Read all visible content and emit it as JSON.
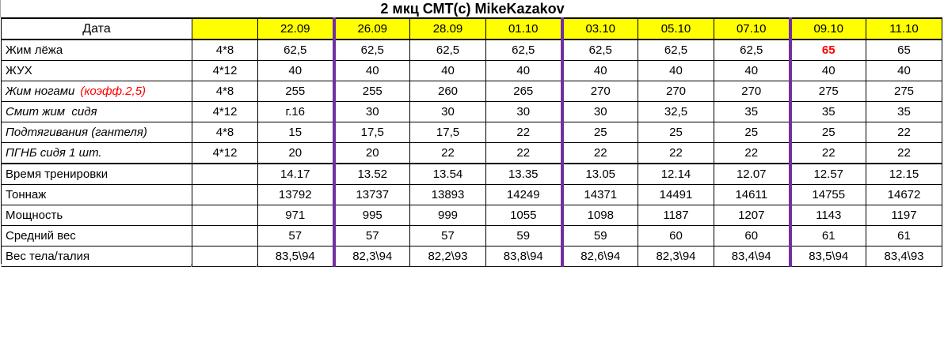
{
  "title": "2 мкц СМТ(с) MikeKazakov",
  "colors": {
    "header_bg": "#ffff00",
    "group_border": "#7030A0",
    "highlight_text": "#ff0000",
    "grid_border": "#000000"
  },
  "table": {
    "header": {
      "label": "Дата",
      "sets_label": "",
      "dates": [
        "22.09",
        "26.09",
        "28.09",
        "01.10",
        "03.10",
        "05.10",
        "07.10",
        "09.10",
        "11.10"
      ]
    },
    "group_break_after": [
      0,
      3,
      6
    ],
    "exercises": [
      {
        "name": "Жим лёжа",
        "scheme": "4*8",
        "italic": false,
        "highlight_index": 7,
        "values": [
          "62,5",
          "62,5",
          "62,5",
          "62,5",
          "62,5",
          "62,5",
          "62,5",
          "65",
          "65"
        ]
      },
      {
        "name": "ЖУХ",
        "scheme": "4*12",
        "italic": false,
        "values": [
          "40",
          "40",
          "40",
          "40",
          "40",
          "40",
          "40",
          "40",
          "40"
        ]
      },
      {
        "name": "Жим ногами",
        "note": "(коэфф.2,5)",
        "scheme": "4*8",
        "italic": true,
        "values": [
          "255",
          "255",
          "260",
          "265",
          "270",
          "270",
          "270",
          "275",
          "275"
        ]
      },
      {
        "name": "Смит жим  сидя",
        "scheme": "4*12",
        "italic": true,
        "values": [
          "г.16",
          "30",
          "30",
          "30",
          "30",
          "32,5",
          "35",
          "35",
          "35"
        ]
      },
      {
        "name": "Подтягивания (гантеля)",
        "scheme": "4*8",
        "italic": true,
        "values": [
          "15",
          "17,5",
          "17,5",
          "22",
          "25",
          "25",
          "25",
          "25",
          "22"
        ]
      },
      {
        "name": "ПГНБ сидя 1 шт.",
        "scheme": "4*12",
        "italic": true,
        "values": [
          "20",
          "20",
          "22",
          "22",
          "22",
          "22",
          "22",
          "22",
          "22"
        ]
      }
    ],
    "stats": [
      {
        "name": "Время тренировки",
        "values": [
          "14.17",
          "13.52",
          "13.54",
          "13.35",
          "13.05",
          "12.14",
          "12.07",
          "12.57",
          "12.15"
        ]
      },
      {
        "name": "Тоннаж",
        "values": [
          "13792",
          "13737",
          "13893",
          "14249",
          "14371",
          "14491",
          "14611",
          "14755",
          "14672"
        ]
      },
      {
        "name": "Мощность",
        "values": [
          "971",
          "995",
          "999",
          "1055",
          "1098",
          "1187",
          "1207",
          "1143",
          "1197"
        ]
      },
      {
        "name": "Средний вес",
        "values": [
          "57",
          "57",
          "57",
          "59",
          "59",
          "60",
          "60",
          "61",
          "61"
        ]
      },
      {
        "name": "Вес тела/талия",
        "values": [
          "83,5\\94",
          "82,3\\94",
          "82,2\\93",
          "83,8\\94",
          "82,6\\94",
          "82,3\\94",
          "83,4\\94",
          "83,5\\94",
          "83,4\\93"
        ]
      }
    ]
  }
}
